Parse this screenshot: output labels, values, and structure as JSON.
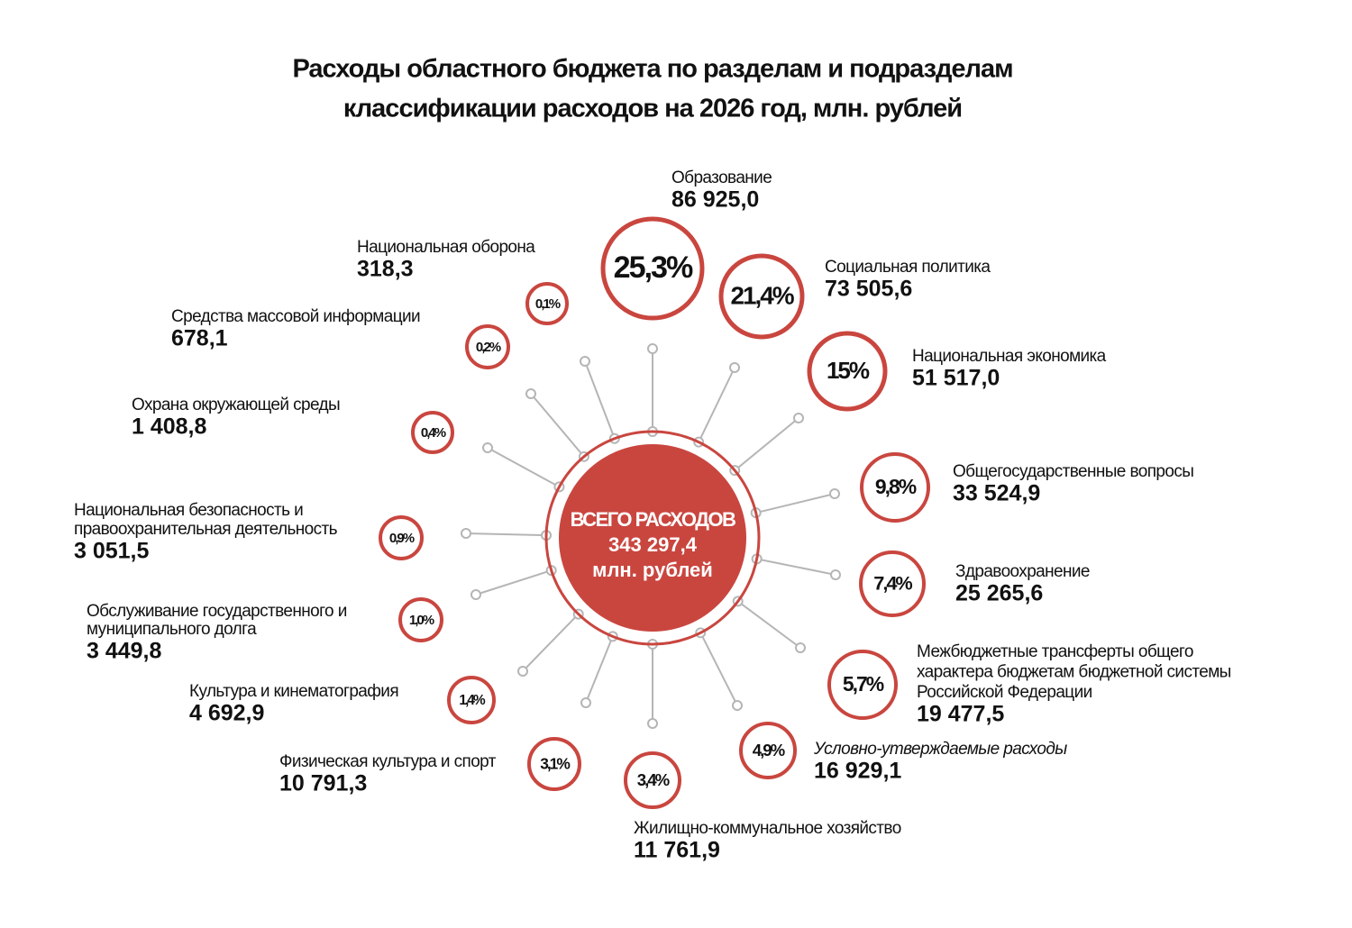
{
  "header": {
    "title_lines": [
      "Расходы областного бюджета по разделам и подразделам",
      "классификации расходов на 2026 год, млн. рублей"
    ]
  },
  "center": {
    "lines": [
      "ВСЕГО РАСХОДОВ",
      "343 297,4",
      "млн. рублей"
    ]
  },
  "items": [
    {
      "name_lines": [
        "Образование"
      ],
      "amount": "86 925,0",
      "percent": "25,3%"
    },
    {
      "name_lines": [
        "Социальная политика"
      ],
      "amount": "73 505,6",
      "percent": "21,4%"
    },
    {
      "name_lines": [
        "Национальная экономика"
      ],
      "amount": "51 517,0",
      "percent": "15%"
    },
    {
      "name_lines": [
        "Общегосударственные вопросы"
      ],
      "amount": "33 524,9",
      "percent": "9,8%"
    },
    {
      "name_lines": [
        "Здравоохранение"
      ],
      "amount": "25 265,6",
      "percent": "7,4%"
    },
    {
      "name_lines": [
        "Межбюджетные трансферты общего",
        "характера бюджетам бюджетной системы",
        "Российской Федерации"
      ],
      "amount": "19 477,5",
      "percent": "5,7%"
    },
    {
      "name_lines": [
        "Условно-утверждаемые расходы"
      ],
      "amount": "16 929,1",
      "percent": "4,9%"
    },
    {
      "name_lines": [
        "Жилищно-коммунальное хозяйство"
      ],
      "amount": "11 761,9",
      "percent": "3,4%"
    },
    {
      "name_lines": [
        "Физическая культура и спорт"
      ],
      "amount": "10 791,3",
      "percent": "3,1%"
    },
    {
      "name_lines": [
        "Культура и кинематография"
      ],
      "amount": "4 692,9",
      "percent": "1,4%"
    },
    {
      "name_lines": [
        "Обслуживание государственного и",
        "муниципального долга"
      ],
      "amount": "3 449,8",
      "percent": "1,0%"
    },
    {
      "name_lines": [
        "Национальная безопасность и",
        "правоохранительная деятельность"
      ],
      "amount": "3 051,5",
      "percent": "0,9%"
    },
    {
      "name_lines": [
        "Охрана окружающей среды"
      ],
      "amount": "1 408,8",
      "percent": "0,4%"
    },
    {
      "name_lines": [
        "Средства массовой информации"
      ],
      "amount": "678,1",
      "percent": "0,2%"
    },
    {
      "name_lines": [
        "Национальная оборона"
      ],
      "amount": "318,3",
      "percent": "0,1%"
    }
  ]
}
